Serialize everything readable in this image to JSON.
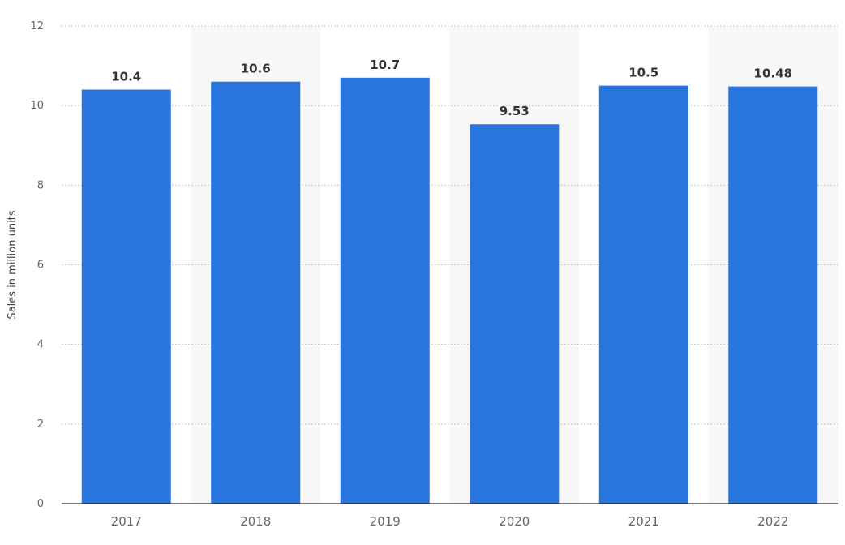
{
  "chart_data": {
    "type": "bar",
    "categories": [
      "2017",
      "2018",
      "2019",
      "2020",
      "2021",
      "2022"
    ],
    "values": [
      10.4,
      10.6,
      10.7,
      9.53,
      10.5,
      10.48
    ],
    "data_labels": [
      "10.4",
      "10.6",
      "10.7",
      "9.53",
      "10.5",
      "10.48"
    ],
    "title": "",
    "xlabel": "",
    "ylabel": "Sales in million units",
    "ylim": [
      0,
      12
    ],
    "yticks": [
      0,
      2,
      4,
      6,
      8,
      10,
      12
    ],
    "grid": "horizontal dotted",
    "alternating_band_shading": true,
    "legend": "none",
    "colors": {
      "bar": "#2876dd",
      "band": "#f7f7f7",
      "grid": "#b4b4b4",
      "axis": "#222222"
    }
  }
}
